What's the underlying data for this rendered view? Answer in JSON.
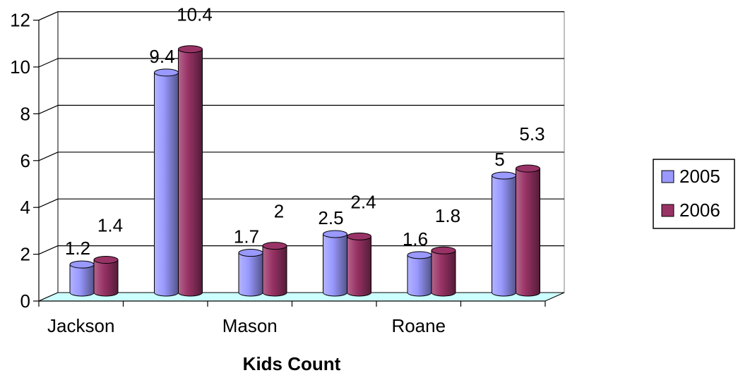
{
  "chart_data": {
    "type": "bar",
    "categories": [
      "Jackson",
      "",
      "Mason",
      "",
      "Roane",
      ""
    ],
    "series": [
      {
        "name": "2005",
        "values": [
          1.2,
          9.4,
          1.7,
          2.5,
          1.6,
          5
        ],
        "color": "#9999ff"
      },
      {
        "name": "2006",
        "values": [
          1.4,
          10.4,
          2,
          2.4,
          1.8,
          5.3
        ],
        "color": "#993366"
      }
    ],
    "title": "",
    "xlabel": "Kids Count",
    "ylabel": "",
    "ylim": [
      0,
      12
    ],
    "yticks": [
      "0",
      "2",
      "4",
      "6",
      "8",
      "10",
      "12"
    ],
    "grid": true,
    "legend_position": "right",
    "floor_color": "#ccffff",
    "style": "3d-cylinder"
  }
}
